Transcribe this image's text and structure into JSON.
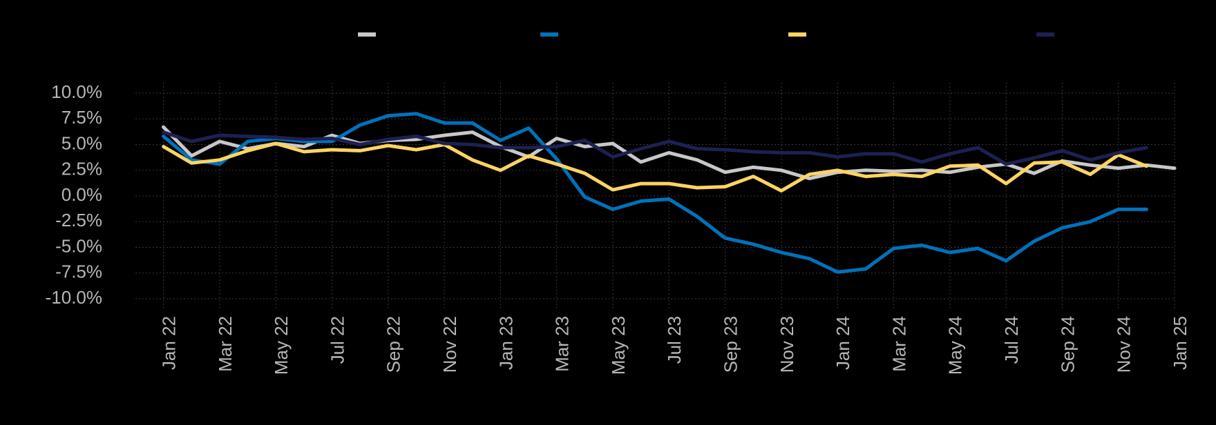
{
  "chart_data": {
    "type": "line",
    "title": "",
    "xlabel": "",
    "ylabel": "",
    "ylim": [
      -10,
      10
    ],
    "y_ticks": [
      10,
      7.5,
      5,
      2.5,
      0,
      -2.5,
      -5,
      -7.5,
      -10
    ],
    "y_tick_labels": [
      "10.0%",
      "7.5%",
      "5.0%",
      "2.5%",
      "0.0%",
      "-2.5%",
      "-5.0%",
      "-7.5%",
      "-10.0%"
    ],
    "x_tick_labels": [
      "Jan 22",
      "Mar 22",
      "May 22",
      "Jul 22",
      "Sep 22",
      "Nov 22",
      "Jan 23",
      "Mar 23",
      "May 23",
      "Jul 23",
      "Sep 23",
      "Nov 23",
      "Jan 24",
      "Mar 24",
      "May 24",
      "Jul 24",
      "Sep 24",
      "Nov 24",
      "Jan 25"
    ],
    "x_range_months": [
      -1,
      36
    ],
    "legend_position": "top",
    "grid": true,
    "series": [
      {
        "name": "",
        "color": "#c8c8c8",
        "start_month": 0,
        "values": [
          6.7,
          3.9,
          5.3,
          4.6,
          5.1,
          4.8,
          5.9,
          5.1,
          5.4,
          5.5,
          5.9,
          6.2,
          4.8,
          3.8,
          5.6,
          4.8,
          5.1,
          3.3,
          4.2,
          3.5,
          2.3,
          2.8,
          2.5,
          1.7,
          2.3,
          2.5,
          2.4,
          2.5,
          2.3,
          2.8,
          3.1,
          2.2,
          3.4,
          3.0,
          2.7,
          3.0,
          2.7
        ]
      },
      {
        "name": "",
        "color": "#0072bb",
        "start_month": 0,
        "values": [
          5.8,
          3.5,
          3.1,
          5.3,
          5.6,
          5.3,
          5.3,
          6.9,
          7.8,
          8.0,
          7.1,
          7.1,
          5.4,
          6.6,
          3.6,
          -0.1,
          -1.3,
          -0.5,
          -0.3,
          -2.0,
          -4.1,
          -4.7,
          -5.5,
          -6.1,
          -7.4,
          -7.1,
          -5.1,
          -4.8,
          -5.5,
          -5.1,
          -6.3,
          -4.4,
          -3.1,
          -2.5,
          -1.3,
          -1.3
        ]
      },
      {
        "name": "",
        "color": "#fdd462",
        "start_month": 0,
        "values": [
          4.8,
          3.2,
          3.5,
          4.4,
          5.1,
          4.3,
          4.5,
          4.4,
          4.9,
          4.5,
          5.0,
          3.5,
          2.5,
          3.9,
          3.1,
          2.2,
          0.6,
          1.2,
          1.2,
          0.8,
          0.9,
          1.9,
          0.5,
          2.1,
          2.5,
          1.9,
          2.1,
          1.9,
          2.9,
          3.0,
          1.2,
          3.2,
          3.3,
          2.1,
          4.0,
          2.9
        ]
      },
      {
        "name": "",
        "color": "#1c2152",
        "start_month": 0,
        "values": [
          6.2,
          5.3,
          5.9,
          5.8,
          5.7,
          5.5,
          5.6,
          5.0,
          5.5,
          5.8,
          5.1,
          5.0,
          4.7,
          4.7,
          4.8,
          5.4,
          3.8,
          4.6,
          5.3,
          4.6,
          4.5,
          4.3,
          4.2,
          4.2,
          3.8,
          4.1,
          4.1,
          3.3,
          4.1,
          4.7,
          3.1,
          3.7,
          4.4,
          3.5,
          4.2,
          4.7
        ]
      }
    ]
  }
}
